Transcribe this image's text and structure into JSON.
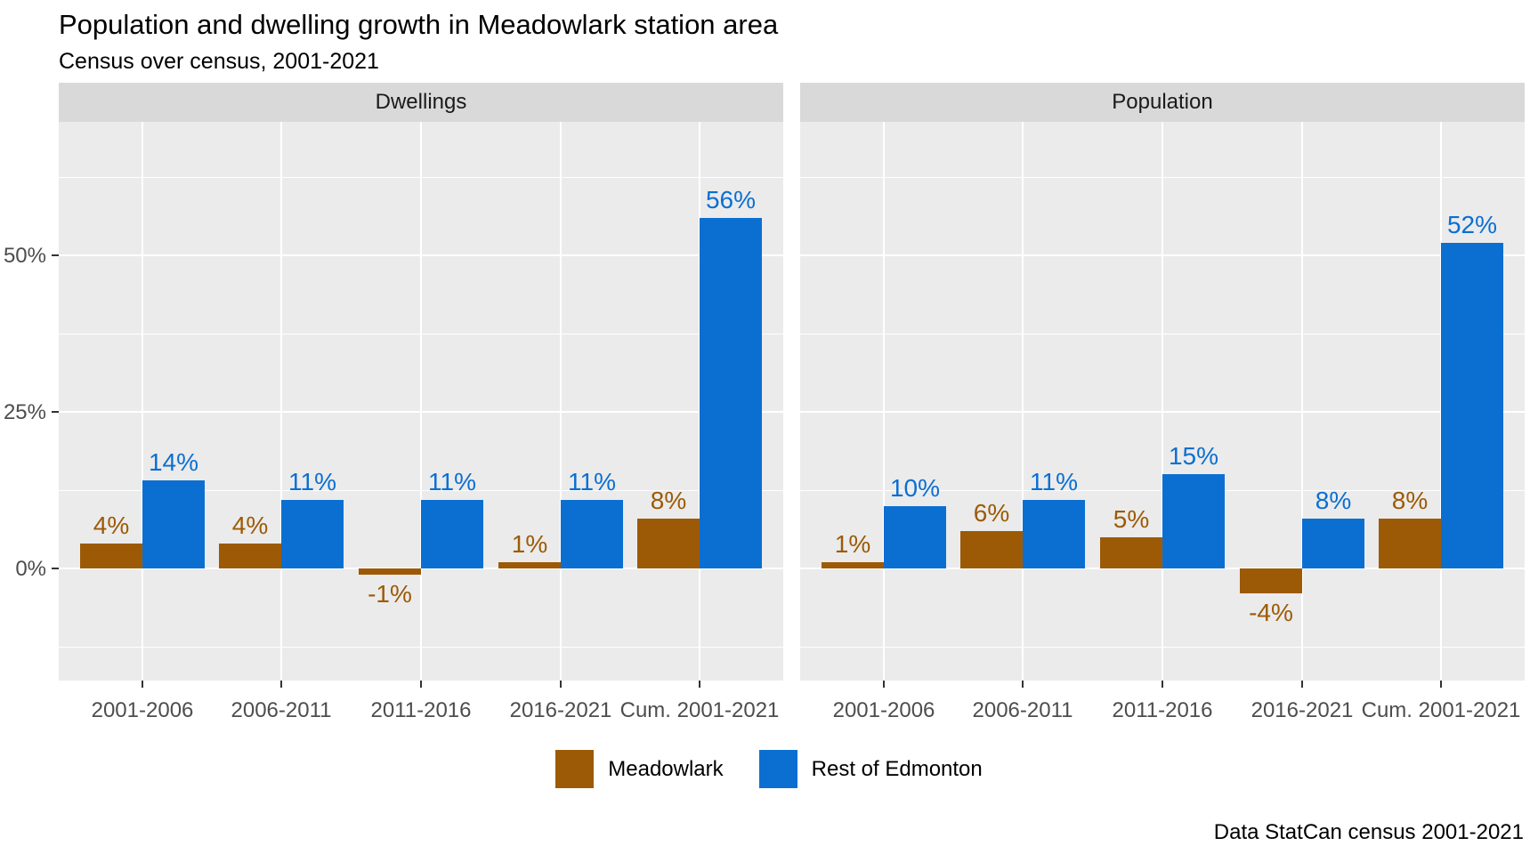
{
  "title": "Population and dwelling growth in Meadowlark station area",
  "subtitle": "Census over census, 2001-2021",
  "caption": "Data StatCan census 2001-2021",
  "colors": {
    "meadowlark": "#9C5A06",
    "rest_of_edmonton": "#0B6FD2",
    "panel_background": "#EBEBEB",
    "strip_background": "#D9D9D9",
    "gridline": "#FFFFFF",
    "axis_text": "#4D4D4D",
    "tick_mark": "#333333"
  },
  "legend": {
    "items": [
      {
        "label": "Meadowlark",
        "color_key": "meadowlark"
      },
      {
        "label": "Rest of Edmonton",
        "color_key": "rest_of_edmonton"
      }
    ],
    "position": "bottom"
  },
  "y_axis": {
    "ticks": [
      {
        "label": "50%",
        "value": 50
      },
      {
        "label": "25%",
        "value": 25
      },
      {
        "label": "0%",
        "value": 0
      }
    ],
    "minor_gridline_values": [
      62.5,
      37.5,
      12.5,
      -12.5
    ]
  },
  "chart_data": {
    "type": "bar",
    "title": "Population and dwelling growth in Meadowlark station area",
    "subtitle": "Census over census, 2001-2021",
    "caption": "Data StatCan census 2001-2021",
    "xlabel": "",
    "ylabel": "",
    "ylim": [
      -18,
      71.5
    ],
    "grid": true,
    "legend_position": "bottom",
    "value_label_suffix": "%",
    "categories": [
      "2001-2006",
      "2006-2011",
      "2011-2016",
      "2016-2021",
      "Cum. 2001-2021"
    ],
    "facets": [
      {
        "label": "Dwellings",
        "series": [
          {
            "name": "Meadowlark",
            "color_key": "meadowlark",
            "values": [
              4,
              4,
              -1,
              1,
              8
            ]
          },
          {
            "name": "Rest of Edmonton",
            "color_key": "rest_of_edmonton",
            "values": [
              14,
              11,
              11,
              11,
              56
            ]
          }
        ]
      },
      {
        "label": "Population",
        "series": [
          {
            "name": "Meadowlark",
            "color_key": "meadowlark",
            "values": [
              1,
              6,
              5,
              -4,
              8
            ]
          },
          {
            "name": "Rest of Edmonton",
            "color_key": "rest_of_edmonton",
            "values": [
              10,
              11,
              15,
              8,
              52
            ]
          }
        ]
      }
    ]
  }
}
